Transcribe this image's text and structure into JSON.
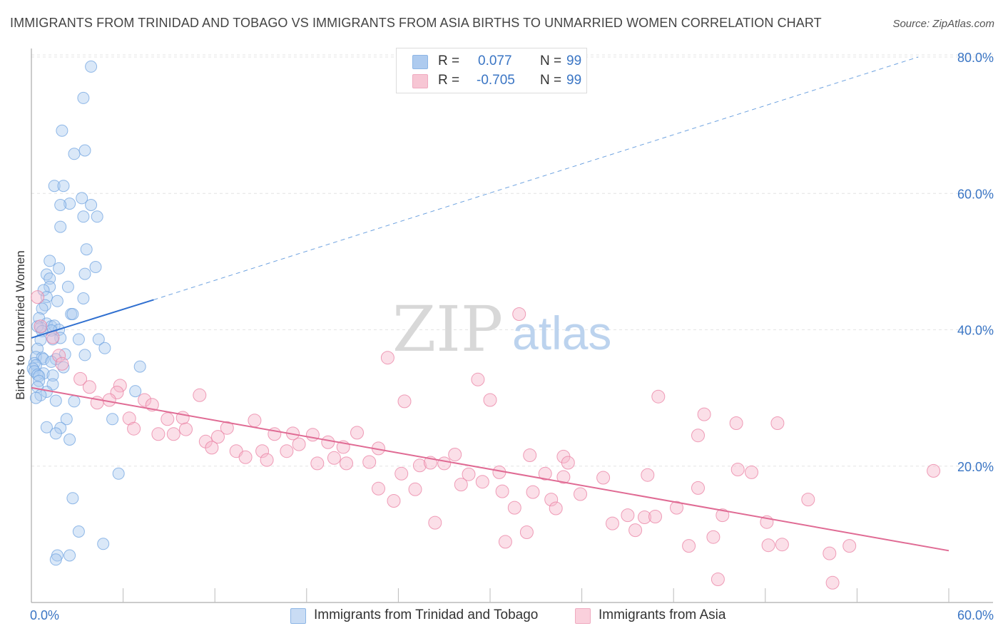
{
  "title": "IMMIGRANTS FROM TRINIDAD AND TOBAGO VS IMMIGRANTS FROM ASIA BIRTHS TO UNMARRIED WOMEN CORRELATION CHART",
  "source": "Source: ZipAtlas.com",
  "watermark": {
    "zip": "ZIP",
    "atlas": "atlas"
  },
  "legend_top": {
    "r_label": "R =",
    "n_label": "N =",
    "rows": [
      {
        "r": "0.077",
        "n": "99",
        "color": "#aecbef"
      },
      {
        "r": "-0.705",
        "n": "99",
        "color": "#f7b8cb"
      }
    ]
  },
  "chart_data": {
    "type": "scatter",
    "title": "IMMIGRANTS FROM TRINIDAD AND TOBAGO VS IMMIGRANTS FROM ASIA BIRTHS TO UNMARRIED WOMEN CORRELATION CHART",
    "xlabel": "",
    "ylabel": "Births to Unmarried Women",
    "xlim": [
      0,
      60
    ],
    "ylim": [
      0,
      80
    ],
    "x_tick_labels": [
      "0.0%",
      "60.0%"
    ],
    "y_tick_labels": [
      "20.0%",
      "40.0%",
      "60.0%",
      "80.0%"
    ],
    "y_ticks": [
      20,
      40,
      60,
      80
    ],
    "grid": true,
    "legend_position": "bottom",
    "series": [
      {
        "name": "Immigrants from Trinidad and Tobago",
        "color": "#6fa3e0",
        "fill": "#aecbef",
        "trend": {
          "x0": 0,
          "y0": 38.8,
          "x1": 8,
          "y1": 44.4,
          "dashed_to_x": 58,
          "dashed_to_y": 80
        },
        "points": [
          [
            3.9,
            78.6
          ],
          [
            3.4,
            74
          ],
          [
            2.0,
            69.2
          ],
          [
            2.8,
            65.8
          ],
          [
            3.5,
            66.3
          ],
          [
            1.5,
            61.1
          ],
          [
            2.1,
            61.1
          ],
          [
            2.5,
            58.5
          ],
          [
            1.9,
            58.3
          ],
          [
            3.3,
            59.3
          ],
          [
            3.9,
            58.3
          ],
          [
            3.4,
            56.6
          ],
          [
            4.3,
            56.6
          ],
          [
            1.9,
            55.1
          ],
          [
            3.6,
            51.8
          ],
          [
            1.2,
            50.1
          ],
          [
            1.8,
            49.0
          ],
          [
            4.2,
            49.2
          ],
          [
            3.5,
            48.2
          ],
          [
            1.0,
            48.1
          ],
          [
            1.2,
            47.5
          ],
          [
            2.4,
            46.3
          ],
          [
            1.2,
            46.3
          ],
          [
            0.8,
            45.8
          ],
          [
            1.0,
            44.8
          ],
          [
            3.4,
            44.6
          ],
          [
            1.7,
            44.2
          ],
          [
            0.9,
            43.6
          ],
          [
            0.7,
            43.1
          ],
          [
            2.6,
            42.3
          ],
          [
            2.7,
            42.3
          ],
          [
            0.5,
            41.7
          ],
          [
            1.0,
            40.9
          ],
          [
            1.3,
            40.5
          ],
          [
            1.5,
            40.6
          ],
          [
            0.6,
            40.3
          ],
          [
            0.4,
            40.5
          ],
          [
            1.8,
            40.0
          ],
          [
            1.3,
            39.9
          ],
          [
            0.7,
            39.8
          ],
          [
            1.9,
            38.8
          ],
          [
            1.4,
            38.6
          ],
          [
            3.1,
            38.6
          ],
          [
            4.4,
            38.6
          ],
          [
            0.6,
            38.5
          ],
          [
            4.8,
            37.3
          ],
          [
            0.4,
            37.2
          ],
          [
            2.2,
            36.4
          ],
          [
            3.5,
            36.3
          ],
          [
            0.3,
            36.0
          ],
          [
            0.7,
            35.9
          ],
          [
            0.8,
            35.7
          ],
          [
            1.6,
            35.7
          ],
          [
            1.3,
            35.3
          ],
          [
            0.2,
            35.1
          ],
          [
            0.3,
            34.8
          ],
          [
            2.1,
            34.5
          ],
          [
            7.1,
            34.6
          ],
          [
            0.1,
            34.3
          ],
          [
            0.2,
            33.9
          ],
          [
            0.8,
            33.6
          ],
          [
            0.4,
            33.4
          ],
          [
            0.5,
            33.2
          ],
          [
            1.4,
            33.3
          ],
          [
            0.5,
            32.5
          ],
          [
            1.4,
            32.0
          ],
          [
            0.4,
            31.6
          ],
          [
            6.8,
            31.0
          ],
          [
            1.0,
            30.9
          ],
          [
            0.6,
            30.4
          ],
          [
            0.3,
            30.0
          ],
          [
            1.6,
            29.6
          ],
          [
            2.8,
            29.5
          ],
          [
            2.3,
            26.9
          ],
          [
            5.3,
            26.9
          ],
          [
            1.0,
            25.7
          ],
          [
            1.9,
            25.6
          ],
          [
            1.6,
            24.8
          ],
          [
            2.5,
            23.9
          ],
          [
            5.7,
            18.9
          ],
          [
            2.7,
            15.3
          ],
          [
            3.1,
            10.4
          ],
          [
            4.7,
            8.6
          ],
          [
            1.7,
            6.9
          ],
          [
            2.5,
            6.9
          ],
          [
            1.6,
            6.3
          ]
        ]
      },
      {
        "name": "Immigrants from Asia",
        "color": "#e97fa1",
        "fill": "#f7b8cb",
        "trend": {
          "x0": 0,
          "y0": 31.5,
          "x1": 60,
          "y1": 7.6
        },
        "points": [
          [
            0.4,
            44.8
          ],
          [
            0.6,
            40.5
          ],
          [
            1.4,
            38.9
          ],
          [
            1.8,
            36.2
          ],
          [
            2.0,
            35.0
          ],
          [
            3.2,
            32.8
          ],
          [
            3.8,
            31.6
          ],
          [
            5.8,
            31.8
          ],
          [
            5.6,
            30.8
          ],
          [
            11.0,
            30.4
          ],
          [
            7.4,
            29.7
          ],
          [
            4.3,
            29.3
          ],
          [
            5.1,
            29.7
          ],
          [
            7.9,
            29.0
          ],
          [
            6.4,
            27.0
          ],
          [
            8.9,
            26.9
          ],
          [
            9.9,
            27.1
          ],
          [
            14.6,
            26.7
          ],
          [
            12.8,
            25.6
          ],
          [
            6.7,
            25.5
          ],
          [
            10.1,
            25.4
          ],
          [
            8.3,
            24.7
          ],
          [
            9.3,
            24.7
          ],
          [
            15.9,
            24.7
          ],
          [
            17.1,
            24.8
          ],
          [
            18.4,
            24.6
          ],
          [
            21.3,
            24.9
          ],
          [
            12.2,
            24.3
          ],
          [
            11.4,
            23.6
          ],
          [
            17.5,
            23.2
          ],
          [
            19.4,
            23.5
          ],
          [
            11.8,
            22.7
          ],
          [
            20.4,
            22.8
          ],
          [
            22.7,
            22.6
          ],
          [
            13.4,
            22.2
          ],
          [
            15.1,
            22.2
          ],
          [
            16.7,
            22.2
          ],
          [
            14.0,
            21.3
          ],
          [
            19.8,
            21.2
          ],
          [
            15.4,
            20.9
          ],
          [
            18.7,
            20.4
          ],
          [
            20.6,
            20.4
          ],
          [
            22.1,
            20.6
          ],
          [
            25.4,
            20.1
          ],
          [
            26.1,
            20.5
          ],
          [
            27.0,
            20.4
          ],
          [
            28.6,
            18.8
          ],
          [
            30.6,
            19.1
          ],
          [
            24.2,
            18.9
          ],
          [
            28.1,
            17.3
          ],
          [
            29.5,
            17.7
          ],
          [
            33.6,
            18.9
          ],
          [
            34.8,
            18.4
          ],
          [
            37.4,
            18.3
          ],
          [
            25.1,
            16.6
          ],
          [
            22.7,
            16.7
          ],
          [
            23.7,
            14.9
          ],
          [
            30.8,
            16.3
          ],
          [
            32.8,
            16.2
          ],
          [
            34.0,
            15.1
          ],
          [
            35.9,
            15.9
          ],
          [
            31.6,
            13.9
          ],
          [
            34.3,
            13.8
          ],
          [
            39.0,
            12.8
          ],
          [
            38.0,
            11.6
          ],
          [
            40.1,
            12.5
          ],
          [
            40.8,
            12.6
          ],
          [
            42.2,
            13.9
          ],
          [
            45.2,
            12.8
          ],
          [
            48.1,
            11.8
          ],
          [
            39.5,
            10.6
          ],
          [
            32.4,
            10.3
          ],
          [
            31.0,
            8.9
          ],
          [
            26.4,
            11.7
          ],
          [
            46.2,
            19.5
          ],
          [
            47.1,
            19.1
          ],
          [
            40.3,
            18.7
          ],
          [
            43.6,
            16.8
          ],
          [
            50.8,
            15.1
          ],
          [
            59.0,
            19.3
          ],
          [
            34.8,
            21.4
          ],
          [
            35.1,
            20.5
          ],
          [
            27.7,
            21.7
          ],
          [
            32.6,
            21.6
          ],
          [
            44.6,
            9.6
          ],
          [
            48.2,
            8.4
          ],
          [
            49.1,
            8.5
          ],
          [
            43.0,
            8.3
          ],
          [
            52.2,
            7.2
          ],
          [
            53.5,
            8.3
          ],
          [
            44.9,
            3.4
          ],
          [
            52.4,
            2.9
          ],
          [
            43.6,
            24.5
          ],
          [
            44.0,
            27.6
          ],
          [
            46.1,
            26.3
          ],
          [
            48.8,
            26.3
          ],
          [
            41.0,
            30.2
          ],
          [
            29.2,
            32.7
          ],
          [
            31.9,
            42.3
          ],
          [
            23.3,
            35.9
          ],
          [
            30.0,
            29.7
          ],
          [
            24.4,
            29.5
          ]
        ]
      }
    ]
  },
  "legend_bottom": [
    {
      "label": "Immigrants from Trinidad and Tobago",
      "color": "#aecbef"
    },
    {
      "label": "Immigrants from Asia",
      "color": "#f7b8cb"
    }
  ]
}
